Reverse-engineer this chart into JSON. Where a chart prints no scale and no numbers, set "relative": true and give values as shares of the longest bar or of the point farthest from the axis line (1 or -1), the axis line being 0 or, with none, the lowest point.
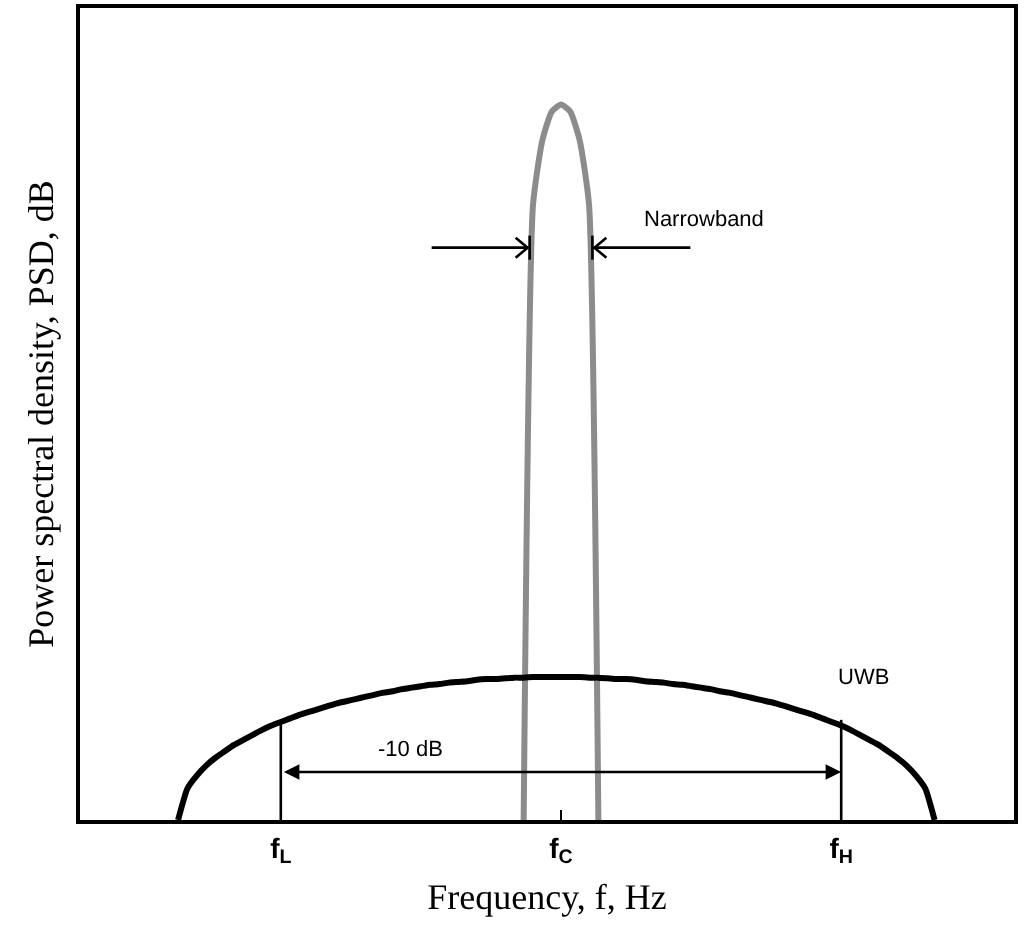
{
  "chart_data": {
    "type": "line",
    "relative": true,
    "xlabel": "Frequency, f, Hz",
    "ylabel": "Power spectral density, PSD, dB",
    "categories": [
      null,
      null,
      null,
      null,
      null,
      null,
      null,
      null,
      null,
      null,
      null,
      null,
      null,
      null,
      null,
      null,
      null,
      null,
      null,
      null,
      null,
      "f$_{L}$",
      null,
      null,
      null,
      null,
      null,
      null,
      null,
      null,
      null,
      null,
      null,
      null,
      null,
      null,
      null,
      null,
      null,
      null,
      null,
      null,
      null,
      null,
      null,
      null,
      null,
      null,
      null,
      null,
      null,
      "f$_{C}$",
      null,
      null,
      null,
      null,
      null,
      null,
      null,
      null,
      null,
      null,
      null,
      null,
      null,
      null,
      null,
      null,
      null,
      null,
      null,
      null,
      null,
      null,
      null,
      null,
      null,
      null,
      null,
      null,
      null,
      "f$_{H}$",
      null,
      null,
      null,
      null,
      null,
      null,
      null,
      null,
      null,
      null,
      null,
      null,
      null,
      null,
      null,
      null,
      null,
      null
    ],
    "series": [
      {
        "color": "#8c8c8c",
        "values": [
          null,
          null,
          null,
          null,
          null,
          null,
          null,
          null,
          null,
          null,
          null,
          null,
          null,
          null,
          null,
          null,
          null,
          null,
          null,
          null,
          null,
          null,
          null,
          null,
          null,
          null,
          null,
          null,
          null,
          null,
          null,
          null,
          null,
          null,
          null,
          null,
          null,
          null,
          null,
          null,
          null,
          null,
          null,
          null,
          null,
          null,
          null,
          0,
          0.86,
          0.95,
          0.99,
          1,
          0.99,
          0.95,
          0.86,
          0,
          null,
          null,
          null,
          null,
          null,
          null,
          null,
          null,
          null,
          null,
          null,
          null,
          null,
          null,
          null,
          null,
          null,
          null,
          null,
          null,
          null,
          null,
          null,
          null,
          null,
          null,
          null,
          null,
          null,
          null,
          null,
          null,
          null,
          null,
          null,
          null,
          null,
          null,
          null,
          null,
          null,
          null,
          null,
          null
        ]
      },
      {
        "color": "#000000",
        "values": [
          null,
          null,
          null,
          null,
          null,
          null,
          null,
          null,
          null,
          null,
          0,
          0.044,
          0.062,
          0.076,
          0.087,
          0.096,
          0.105,
          0.112,
          0.119,
          0.126,
          0.132,
          0.137,
          0.142,
          0.147,
          0.151,
          0.155,
          0.159,
          0.163,
          0.166,
          0.169,
          0.172,
          0.175,
          0.178,
          0.18,
          0.183,
          0.185,
          0.187,
          0.189,
          0.19,
          0.192,
          0.193,
          0.194,
          0.196,
          0.197,
          0.197,
          0.198,
          0.199,
          0.199,
          0.2,
          0.2,
          0.2,
          0.2,
          0.2,
          0.2,
          0.199,
          0.199,
          0.198,
          0.197,
          0.197,
          0.196,
          0.194,
          0.193,
          0.192,
          0.19,
          0.189,
          0.187,
          0.185,
          0.183,
          0.18,
          0.178,
          0.175,
          0.172,
          0.169,
          0.166,
          0.163,
          0.159,
          0.155,
          0.151,
          0.147,
          0.142,
          0.137,
          0.132,
          0.126,
          0.119,
          0.112,
          0.105,
          0.096,
          0.087,
          0.076,
          0.062,
          0.044,
          0,
          null,
          null,
          null,
          null,
          null,
          null,
          null,
          null
        ]
      }
    ],
    "annotations": [
      "Narrowband",
      "UWB",
      "-10 dB"
    ],
    "grid": false,
    "marker": "none",
    "line_style": "solid"
  }
}
